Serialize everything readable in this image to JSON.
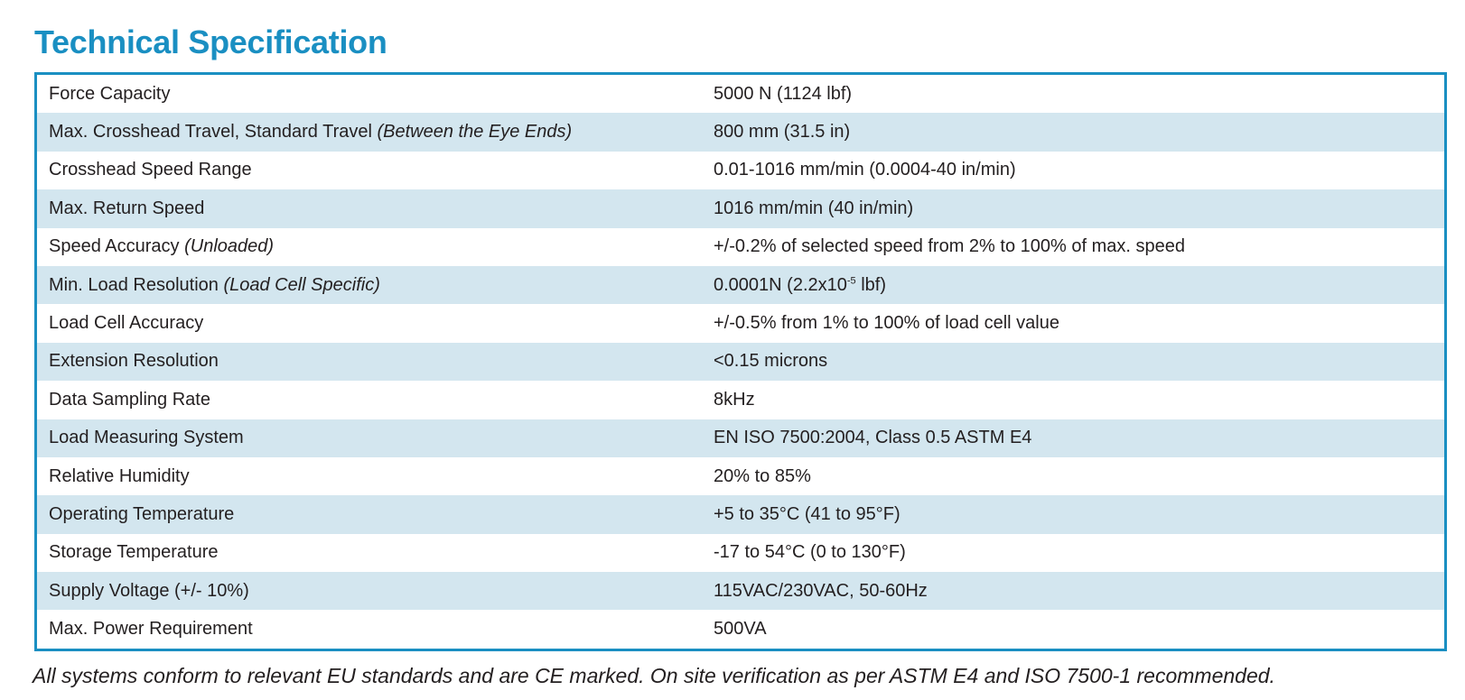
{
  "title": "Technical Specification",
  "rows": [
    {
      "label": "Force Capacity",
      "note": "",
      "value": "5000 N (1124 lbf)"
    },
    {
      "label": "Max. Crosshead Travel, Standard Travel ",
      "note": "(Between the Eye Ends)",
      "value": "800 mm (31.5 in)"
    },
    {
      "label": "Crosshead Speed Range",
      "note": "",
      "value": "0.01-1016 mm/min (0.0004-40 in/min)"
    },
    {
      "label": "Max. Return Speed",
      "note": "",
      "value": "1016 mm/min (40 in/min)"
    },
    {
      "label": "Speed Accuracy ",
      "note": "(Unloaded)",
      "value": "+/-0.2% of selected speed from 2% to 100% of max. speed"
    },
    {
      "label": "Min. Load Resolution ",
      "note": "(Load Cell Specific)",
      "value": "0.0001N (2.2x10",
      "value_sup": "-5",
      "value_suffix": " lbf)"
    },
    {
      "label": "Load Cell Accuracy",
      "note": "",
      "value": "+/-0.5% from 1% to 100% of load cell value"
    },
    {
      "label": "Extension Resolution",
      "note": "",
      "value": "<0.15 microns"
    },
    {
      "label": "Data Sampling Rate",
      "note": "",
      "value": "8kHz"
    },
    {
      "label": "Load Measuring System",
      "note": "",
      "value": "EN ISO 7500:2004, Class 0.5 ASTM E4"
    },
    {
      "label": "Relative Humidity",
      "note": "",
      "value": "20% to 85%"
    },
    {
      "label": "Operating Temperature",
      "note": "",
      "value": "+5 to 35°C (41 to 95°F)"
    },
    {
      "label": "Storage Temperature",
      "note": "",
      "value": "-17 to 54°C (0 to 130°F)"
    },
    {
      "label": "Supply Voltage (+/- 10%)",
      "note": "",
      "value": "115VAC/230VAC, 50-60Hz"
    },
    {
      "label": "Max. Power Requirement",
      "note": "",
      "value": "500VA"
    }
  ],
  "footnote": "All systems conform to relevant EU standards and are CE marked. On site verification as per ASTM E4 and ISO 7500-1 recommended.",
  "colors": {
    "accent": "#1a8fc2",
    "row_alt": "#d3e6ef",
    "text": "#231f20"
  }
}
